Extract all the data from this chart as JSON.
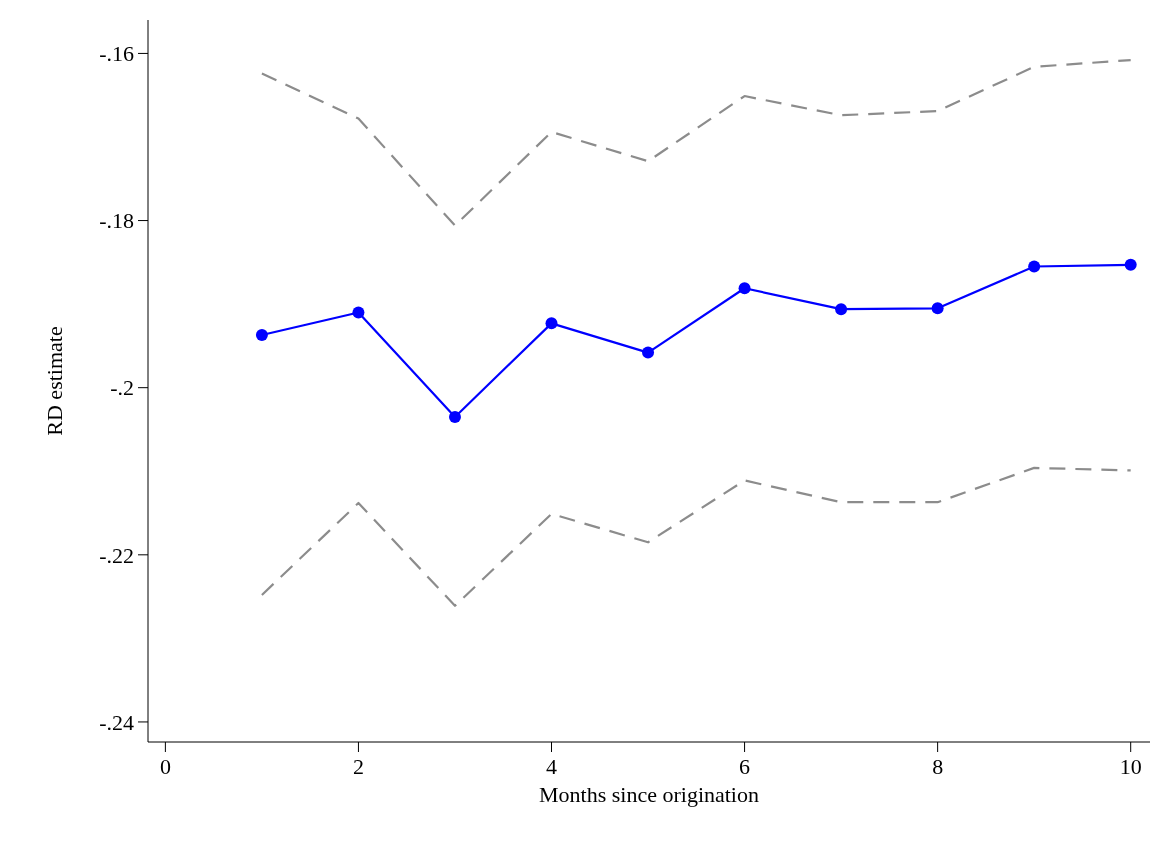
{
  "chart_data": {
    "type": "line",
    "xlabel": "Months since origination",
    "ylabel": "RD estimate",
    "x": [
      1,
      2,
      3,
      4,
      5,
      6,
      7,
      8,
      9,
      10
    ],
    "series": [
      {
        "color": "#0000ff",
        "marker": "circle",
        "line_style": "solid",
        "values": [
          -0.1937,
          -0.191,
          -0.2035,
          -0.1923,
          -0.1958,
          -0.1881,
          -0.1906,
          -0.1905,
          -0.1855,
          -0.1853
        ]
      },
      {
        "color": "#8c8c8c",
        "marker": "none",
        "line_style": "dashed",
        "values": [
          -0.1624,
          -0.1678,
          -0.1806,
          -0.1694,
          -0.1729,
          -0.1651,
          -0.1674,
          -0.1669,
          -0.1616,
          -0.1608
        ]
      },
      {
        "color": "#8c8c8c",
        "marker": "none",
        "line_style": "dashed",
        "values": [
          -0.2248,
          -0.2138,
          -0.2261,
          -0.2151,
          -0.2185,
          -0.2111,
          -0.2137,
          -0.2137,
          -0.2096,
          -0.2099
        ]
      }
    ],
    "xlim": [
      -0.18,
      10.2
    ],
    "xticks": [
      0,
      2,
      4,
      6,
      8,
      10
    ],
    "ylim": [
      -0.2424,
      -0.156
    ],
    "yticks": [
      {
        "value": -0.24,
        "label": "-.24"
      },
      {
        "value": -0.22,
        "label": "-.22"
      },
      {
        "value": -0.2,
        "label": "-.2"
      },
      {
        "value": -0.18,
        "label": "-.18"
      },
      {
        "value": -0.16,
        "label": "-.16"
      }
    ],
    "grid": false
  }
}
